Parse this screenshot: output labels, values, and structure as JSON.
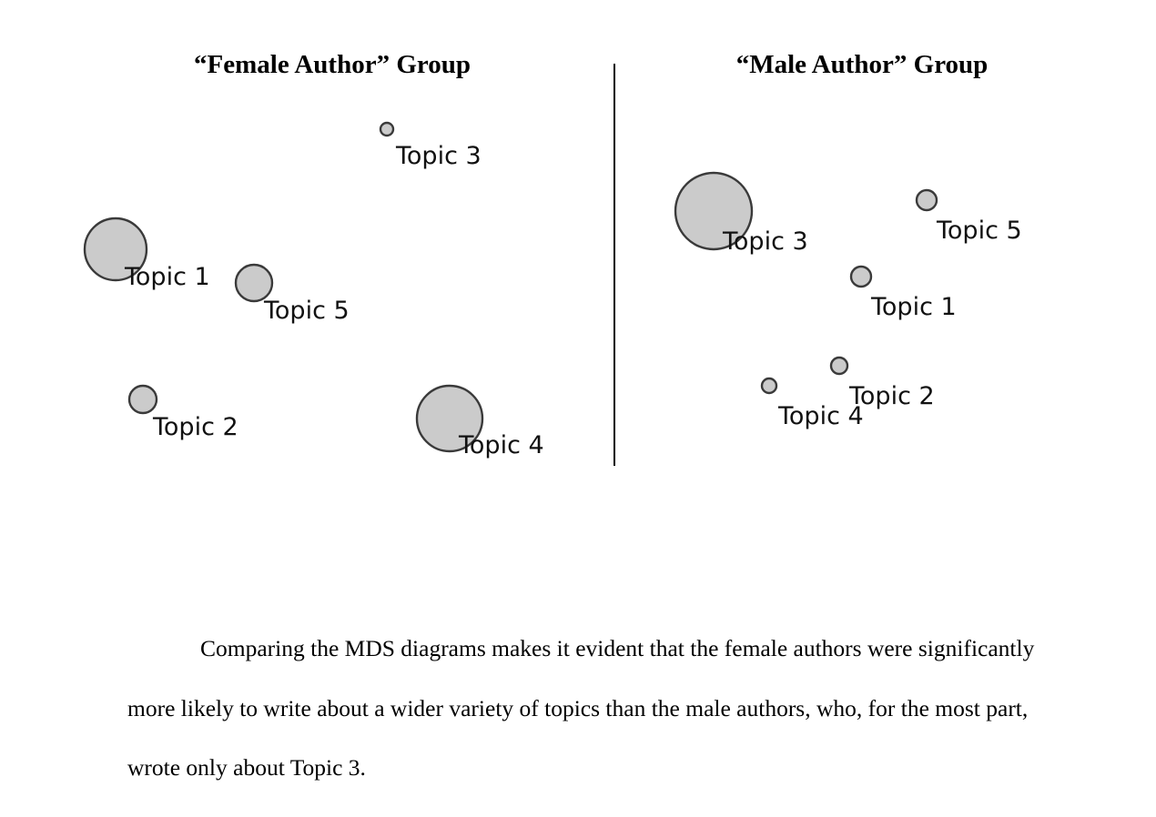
{
  "panels": [
    {
      "title": "“Female Author” Group",
      "topics": [
        {
          "label": "Topic 1",
          "size": "large"
        },
        {
          "label": "Topic 2",
          "size": "small"
        },
        {
          "label": "Topic 3",
          "size": "tiny"
        },
        {
          "label": "Topic 4",
          "size": "large"
        },
        {
          "label": "Topic 5",
          "size": "small"
        }
      ]
    },
    {
      "title": "“Male Author” Group",
      "topics": [
        {
          "label": "Topic 1",
          "size": "small"
        },
        {
          "label": "Topic 2",
          "size": "tiny"
        },
        {
          "label": "Topic 3",
          "size": "largest"
        },
        {
          "label": "Topic 4",
          "size": "tiny"
        },
        {
          "label": "Topic 5",
          "size": "small"
        }
      ]
    }
  ],
  "paragraph": "Comparing the MDS diagrams makes it evident that the female authors were significantly more likely to write about a wider variety of topics than the male authors, who, for the most part, wrote only about Topic 3.",
  "colors": {
    "bubble_fill": "#cbcbcb",
    "bubble_stroke": "#3a3a3a"
  }
}
